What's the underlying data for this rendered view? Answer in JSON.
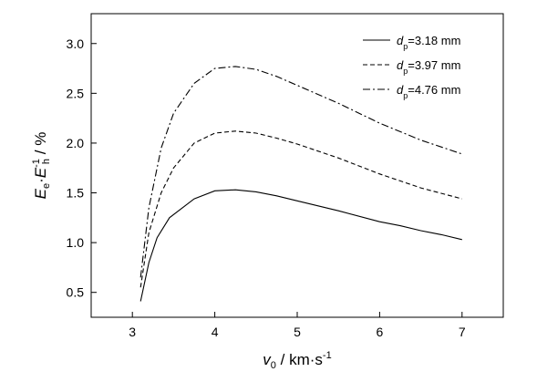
{
  "chart_data": {
    "type": "line",
    "title": "",
    "xlabel": {
      "main": "v",
      "sub": "0",
      "unit": " / km·s",
      "sup": "-1"
    },
    "ylabel": {
      "main_1": "E",
      "sub_1": "e",
      "dot": "·",
      "main_2": "E",
      "sup": "-1",
      "sub_2": "h",
      "unit": " / %"
    },
    "xlim": [
      2.5,
      7.5
    ],
    "ylim": [
      0.25,
      3.3
    ],
    "xticks": [
      3,
      4,
      5,
      6,
      7
    ],
    "xtick_labels": [
      "3",
      "4",
      "5",
      "6",
      "7"
    ],
    "yticks": [
      0.5,
      1.0,
      1.5,
      2.0,
      2.5,
      3.0
    ],
    "ytick_labels": [
      "0.5",
      "1.0",
      "1.5",
      "2.0",
      "2.5",
      "3.0"
    ],
    "grid": false,
    "legend_position": "top-right",
    "series": [
      {
        "name": {
          "sym": "d",
          "sub": "p",
          "value": "=3.18 mm"
        },
        "style": "solid",
        "x": [
          3.1,
          3.2,
          3.3,
          3.45,
          3.75,
          4.0,
          4.25,
          4.5,
          4.75,
          5.0,
          5.5,
          6.0,
          6.25,
          6.5,
          6.75,
          7.0
        ],
        "y": [
          0.41,
          0.8,
          1.05,
          1.25,
          1.44,
          1.52,
          1.53,
          1.51,
          1.47,
          1.42,
          1.32,
          1.21,
          1.17,
          1.12,
          1.08,
          1.03
        ]
      },
      {
        "name": {
          "sym": "d",
          "sub": "p",
          "value": "=3.97 mm"
        },
        "style": "dashed",
        "x": [
          3.1,
          3.2,
          3.35,
          3.5,
          3.75,
          4.0,
          4.25,
          4.5,
          4.75,
          5.0,
          5.5,
          6.0,
          6.5,
          7.0
        ],
        "y": [
          0.55,
          1.1,
          1.5,
          1.75,
          2.0,
          2.1,
          2.12,
          2.1,
          2.05,
          1.99,
          1.85,
          1.69,
          1.55,
          1.44
        ]
      },
      {
        "name": {
          "sym": "d",
          "sub": "p",
          "value": "=4.76 mm"
        },
        "style": "dashdot",
        "x": [
          3.1,
          3.2,
          3.35,
          3.5,
          3.75,
          4.0,
          4.25,
          4.5,
          4.75,
          5.0,
          5.5,
          6.0,
          6.5,
          7.0
        ],
        "y": [
          0.65,
          1.35,
          1.95,
          2.3,
          2.6,
          2.75,
          2.77,
          2.74,
          2.67,
          2.58,
          2.4,
          2.2,
          2.03,
          1.89
        ]
      }
    ]
  }
}
